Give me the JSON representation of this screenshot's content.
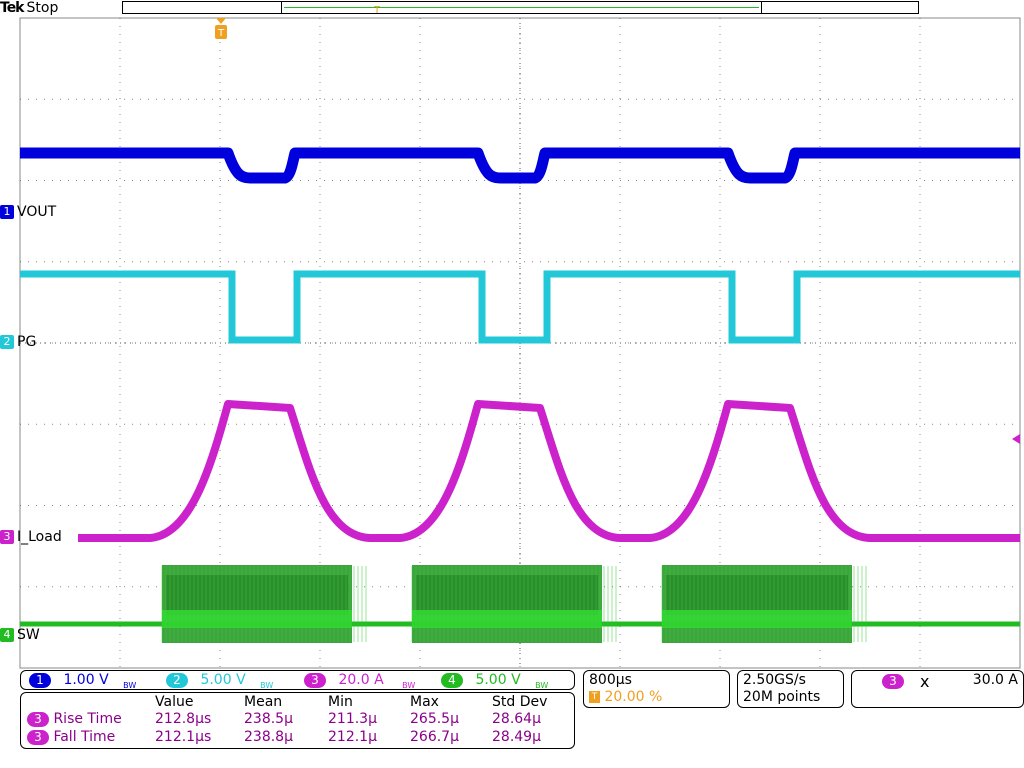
{
  "header": {
    "brand": "Tek",
    "run_state": "Stop",
    "trigger_marker": "T",
    "center_marker": "T"
  },
  "colors": {
    "ch1": "#0000dd",
    "ch2": "#22c8d8",
    "ch3": "#cc22cc",
    "ch4": "#22bb22",
    "trigger": "#f0a020",
    "grid": "#555555"
  },
  "channels": [
    {
      "num": "1",
      "label": "VOUT",
      "scale": "1.00 V",
      "bw": "BW",
      "color": "#0000dd"
    },
    {
      "num": "2",
      "label": "PG",
      "scale": "5.00 V",
      "bw": "BW",
      "color": "#22c8d8"
    },
    {
      "num": "3",
      "label": "I_Load",
      "scale": "20.0 A",
      "bw": "BW",
      "color": "#cc22cc"
    },
    {
      "num": "4",
      "label": "SW",
      "scale": "5.00 V",
      "bw": "BW",
      "color": "#22bb22"
    }
  ],
  "timebase": {
    "value": "800μs",
    "trigger_pos": "20.00 %"
  },
  "acquisition": {
    "rate": "2.50GS/s",
    "points": "20M points"
  },
  "trigger": {
    "source": "3",
    "slope_icon": "х",
    "level": "30.0 A"
  },
  "measurements": {
    "headers": [
      "Value",
      "Mean",
      "Min",
      "Max",
      "Std Dev"
    ],
    "rows": [
      {
        "ch": "3",
        "name": "Rise Time",
        "value": "212.8μs",
        "mean": "238.5μ",
        "min": "211.3μ",
        "max": "265.5μ",
        "std": "28.64μ"
      },
      {
        "ch": "3",
        "name": "Fall Time",
        "value": "212.1μs",
        "mean": "238.8μ",
        "min": "212.1μ",
        "max": "266.7μ",
        "std": "28.49μ"
      }
    ]
  }
}
